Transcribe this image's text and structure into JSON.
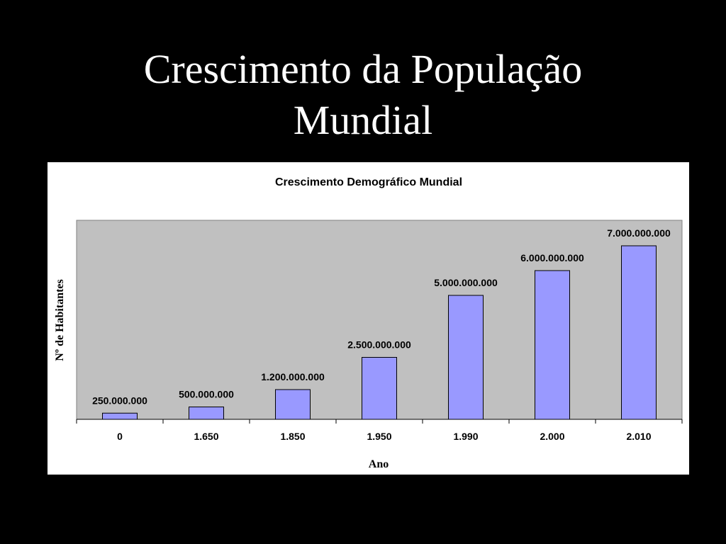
{
  "slide": {
    "title_line1": "Crescimento da População",
    "title_line2": "Mundial"
  },
  "chart_data": {
    "type": "bar",
    "title": "Crescimento Demográfico Mundial",
    "xlabel": "Ano",
    "ylabel": "Nº de Habitantes",
    "categories": [
      "0",
      "1.650",
      "1.850",
      "1.950",
      "1.990",
      "2.000",
      "2.010"
    ],
    "values": [
      250000000,
      500000000,
      1200000000,
      2500000000,
      5000000000,
      6000000000,
      7000000000
    ],
    "data_labels": [
      "250.000.000",
      "500.000.000",
      "1.200.000.000",
      "2.500.000.000",
      "5.000.000.000",
      "6.000.000.000",
      "7.000.000.000"
    ],
    "ylim": [
      0,
      8000000000
    ],
    "grid": false,
    "legend": "none",
    "colors": {
      "bar_fill": "#9999ff",
      "bar_stroke": "#000000",
      "plot_background": "#c0c0c0",
      "chart_background": "#ffffff",
      "slide_background": "#000000",
      "slide_title": "#ffffff"
    }
  }
}
